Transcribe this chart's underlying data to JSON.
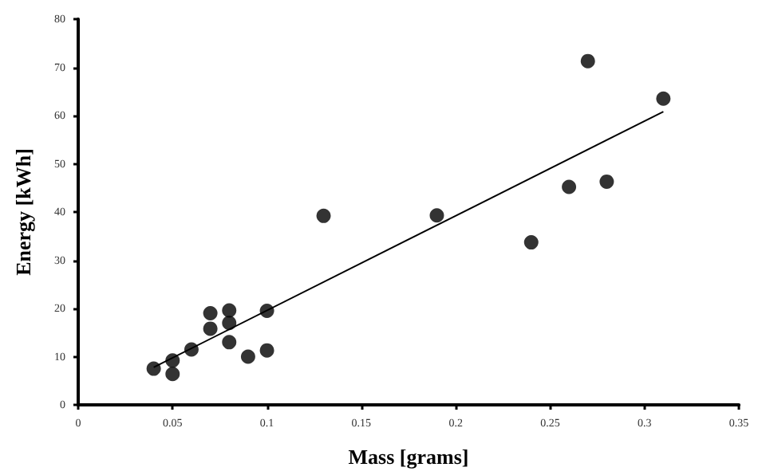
{
  "chart_data": {
    "type": "scatter",
    "xlabel": "Mass [grams]",
    "ylabel": "Energy [kWh]",
    "series": [
      {
        "color": "#000000",
        "marker": "circle",
        "x": [
          0.04,
          0.05,
          0.05,
          0.06,
          0.07,
          0.07,
          0.08,
          0.08,
          0.08,
          0.09,
          0.1,
          0.1,
          0.13,
          0.19,
          0.24,
          0.26,
          0.27,
          0.28,
          0.31
        ],
        "values": [
          7.5,
          9.2,
          6.4,
          11.5,
          19,
          15.8,
          19.6,
          17,
          13,
          10,
          19.5,
          11.3,
          39.2,
          39.3,
          33.7,
          45.2,
          71.3,
          46.3,
          63.5
        ]
      },
      {
        "type": "line",
        "color": "#000000",
        "marker": "none",
        "line_style": "solid",
        "x": [
          0.04,
          0.31
        ],
        "values": [
          7.8,
          60.8
        ]
      }
    ],
    "xlim": [
      0,
      0.35
    ],
    "xticks": [
      0,
      0.05,
      0.1,
      0.15,
      0.2,
      0.25,
      0.3,
      0.35
    ],
    "ylim": [
      0,
      80
    ],
    "yticks": [
      0,
      10,
      20,
      30,
      40,
      50,
      60,
      70,
      80
    ],
    "grid": false
  }
}
